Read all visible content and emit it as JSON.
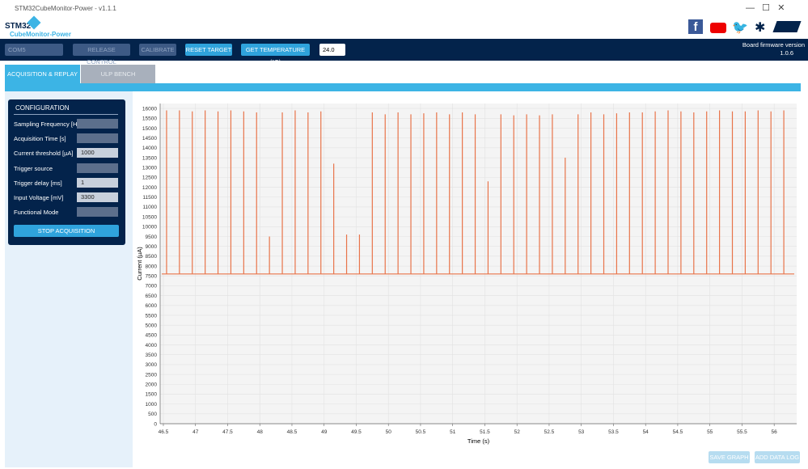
{
  "window": {
    "title": "STM32CubeMonitor-Power - v1.1.1"
  },
  "header": {
    "logo_top": "STM32",
    "logo_bottom": "CubeMonitor-Power"
  },
  "toolbar": {
    "port": "COM5",
    "release": "RELEASE CONTROL",
    "calibrate": "CALIBRATE",
    "reset": "RESET TARGET",
    "temperature": "GET TEMPERATURE (°C)",
    "temperature_value": "24.0",
    "firmware_label": "Board firmware version",
    "firmware_value": "1.0.6"
  },
  "tabs": [
    "ACQUISITION & REPLAY",
    "ULP BENCH"
  ],
  "config": {
    "title": "CONFIGURATION",
    "fields": [
      {
        "label": "Sampling Frequency [Hz]"
      },
      {
        "label": "Acquisition Time [s]"
      },
      {
        "label": "Current threshold [µA]",
        "value": "1000"
      },
      {
        "label": "Trigger source"
      },
      {
        "label": "Trigger delay [ms]",
        "value": "1"
      },
      {
        "label": "Input Voltage [mV]",
        "value": "3300"
      },
      {
        "label": "Functional Mode"
      }
    ],
    "stop": "STOP ACQUISITION"
  },
  "buttons": {
    "save": "SAVE GRAPH",
    "add": "ADD DATA LOG"
  },
  "chart_data": {
    "type": "spikes",
    "x_label": "Time (s)",
    "y_label": "Current (µA)",
    "color": "#e8744a",
    "baseline": 7600,
    "x": [
      46.55,
      46.75,
      46.95,
      47.15,
      47.35,
      47.55,
      47.75,
      47.95,
      48.15,
      48.35,
      48.55,
      48.75,
      48.95,
      49.15,
      49.35,
      49.55,
      49.75,
      49.95,
      50.15,
      50.35,
      50.55,
      50.75,
      50.95,
      51.15,
      51.35,
      51.55,
      51.75,
      51.95,
      52.15,
      52.35,
      52.55,
      52.75,
      52.95,
      53.15,
      53.35,
      53.55,
      53.75,
      53.95,
      54.15,
      54.35,
      54.55,
      54.75,
      54.95,
      55.15,
      55.35,
      55.55,
      55.75,
      55.95,
      56.15
    ],
    "values": [
      15900,
      15900,
      15850,
      15900,
      15850,
      15900,
      15850,
      15800,
      9500,
      15800,
      15900,
      15800,
      15850,
      13200,
      9600,
      9600,
      15800,
      15700,
      15800,
      15700,
      15750,
      15800,
      15700,
      15800,
      15700,
      12300,
      15700,
      15650,
      15700,
      15650,
      15700,
      13500,
      15700,
      15800,
      15700,
      15750,
      15800,
      15800,
      15850,
      15900,
      15850,
      15800,
      15850,
      15900,
      15850,
      15850,
      15900,
      15850,
      15900
    ],
    "xlim": [
      46.45,
      56.35
    ],
    "ylim": [
      0,
      16250
    ],
    "xticks": [
      46.5,
      47,
      47.5,
      48,
      48.5,
      49,
      49.5,
      50,
      50.5,
      51,
      51.5,
      52,
      52.5,
      53,
      53.5,
      54,
      54.5,
      55,
      55.5,
      56
    ],
    "yticks": [
      0,
      500,
      1000,
      1500,
      2000,
      2500,
      3000,
      3500,
      4000,
      4500,
      5000,
      5500,
      6000,
      6500,
      7000,
      7500,
      8000,
      8500,
      9000,
      9500,
      10000,
      10500,
      11000,
      11500,
      12000,
      12500,
      13000,
      13500,
      14000,
      14500,
      15000,
      15500,
      16000
    ],
    "grid": true
  }
}
